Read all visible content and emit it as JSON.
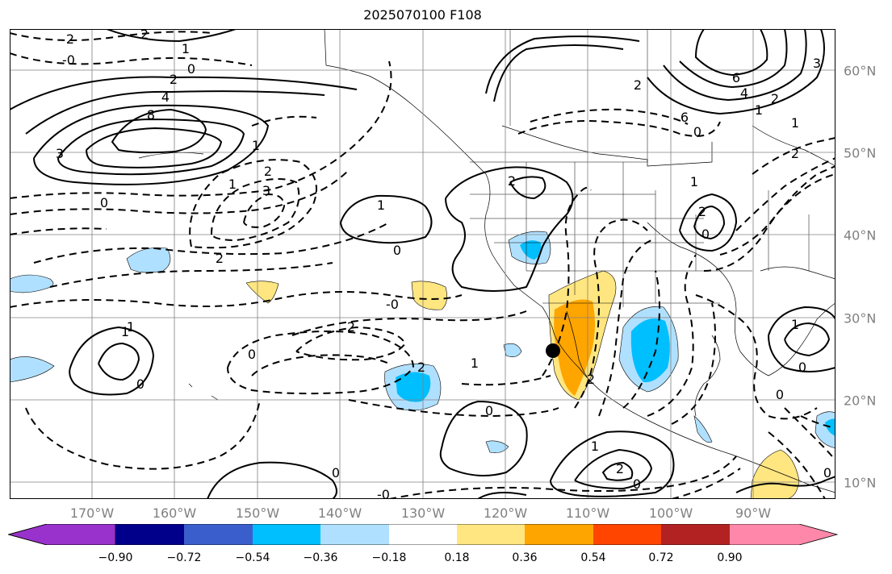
{
  "title": "2025070100 F108",
  "lon_labels": [
    "170°W",
    "160°W",
    "150°W",
    "140°W",
    "130°W",
    "120°W",
    "110°W",
    "100°W",
    "90°W"
  ],
  "lat_labels": [
    "60°N",
    "50°N",
    "40°N",
    "30°N",
    "20°N",
    "10°N"
  ],
  "colorbar": {
    "ticks": [
      "−0.90",
      "−0.72",
      "−0.54",
      "−0.36",
      "−0.18",
      "0.18",
      "0.36",
      "0.54",
      "0.72",
      "0.90"
    ],
    "colors": [
      "#9932cc",
      "#00008b",
      "#3a5fcd",
      "#00bfff",
      "#b0e0ff",
      "#ffffff",
      "#ffe680",
      "#ffa500",
      "#ff4500",
      "#b22222",
      "#ff88aa"
    ]
  },
  "contour_labels": [
    {
      "text": "2"
    },
    {
      "text": "2"
    },
    {
      "text": "1"
    },
    {
      "text": "0"
    },
    {
      "text": "-0"
    },
    {
      "text": "2"
    },
    {
      "text": "4"
    },
    {
      "text": "8"
    },
    {
      "text": "3"
    },
    {
      "text": "1"
    },
    {
      "text": "2"
    },
    {
      "text": "3"
    },
    {
      "text": "1"
    },
    {
      "text": "0"
    },
    {
      "text": "2"
    },
    {
      "text": "1"
    },
    {
      "text": "0"
    },
    {
      "text": "-0"
    },
    {
      "text": "2"
    },
    {
      "text": "0"
    },
    {
      "text": "1"
    },
    {
      "text": "0"
    },
    {
      "text": "2"
    },
    {
      "text": "1"
    },
    {
      "text": "2"
    },
    {
      "text": "0"
    },
    {
      "text": "1"
    },
    {
      "text": "2"
    },
    {
      "text": "0"
    },
    {
      "text": "-0"
    },
    {
      "text": "0"
    },
    {
      "text": "2"
    },
    {
      "text": "2"
    },
    {
      "text": "6"
    },
    {
      "text": "0"
    },
    {
      "text": "6"
    },
    {
      "text": "4"
    },
    {
      "text": "2"
    },
    {
      "text": "1"
    },
    {
      "text": "3"
    },
    {
      "text": "1"
    },
    {
      "text": "2"
    },
    {
      "text": "1"
    },
    {
      "text": "2"
    },
    {
      "text": "0"
    },
    {
      "text": "1"
    },
    {
      "text": "0"
    },
    {
      "text": "0"
    },
    {
      "text": "0"
    },
    {
      "text": "1"
    }
  ],
  "marker": "station-marker"
}
